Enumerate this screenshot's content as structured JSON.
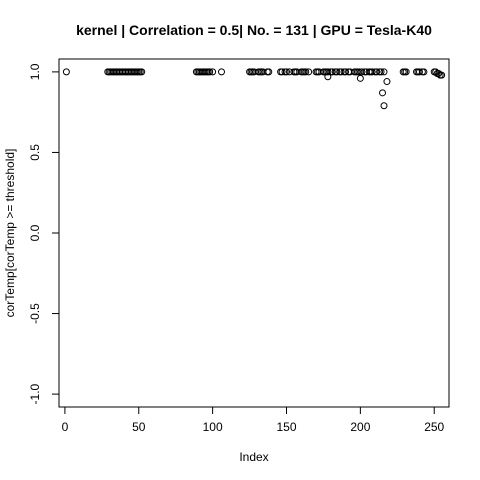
{
  "chart_data": {
    "type": "scatter",
    "title": "kernel | Correlation = 0.5| No. = 131 | GPU = Tesla-K40",
    "xlabel": "Index",
    "ylabel": "corTemp[corTemp >= threshold]",
    "xlim": [
      -4,
      260
    ],
    "ylim": [
      -1.08,
      1.08
    ],
    "xticks": [
      0,
      50,
      100,
      150,
      200,
      250
    ],
    "yticks": [
      -1.0,
      -0.5,
      0.0,
      0.5,
      1.0
    ],
    "xtick_labels": [
      "0",
      "50",
      "100",
      "150",
      "200",
      "250"
    ],
    "ytick_labels": [
      "-1.0",
      "-0.5",
      "0.0",
      "0.5",
      "1.0"
    ],
    "grid": false,
    "marker": "open-circle",
    "x": [
      1,
      29,
      30,
      31,
      32,
      33,
      34,
      35,
      36,
      37,
      38,
      39,
      40,
      41,
      42,
      43,
      44,
      45,
      46,
      47,
      48,
      49,
      50,
      51,
      52,
      89,
      90,
      91,
      92,
      93,
      94,
      95,
      96,
      97,
      98,
      100,
      106,
      125,
      126,
      127,
      128,
      131,
      132,
      133,
      134,
      137,
      138,
      146,
      147,
      149,
      150,
      152,
      155,
      156,
      157,
      160,
      161,
      162,
      163,
      165,
      170,
      171,
      172,
      175,
      176,
      177,
      178,
      180,
      181,
      183,
      184,
      186,
      187,
      189,
      190,
      192,
      193,
      196,
      197,
      198,
      199,
      201,
      203,
      204,
      206,
      207,
      208,
      210,
      211,
      213,
      214,
      216,
      229,
      230,
      231,
      238,
      239,
      240,
      242,
      243,
      250,
      251,
      252,
      253,
      254,
      255,
      200,
      178,
      215,
      216,
      218
    ],
    "y": [
      1,
      1,
      1,
      1,
      1,
      1,
      1,
      1,
      1,
      1,
      1,
      1,
      1,
      1,
      1,
      1,
      1,
      1,
      1,
      1,
      1,
      1,
      1,
      1,
      1,
      1,
      1,
      1,
      1,
      1,
      1,
      1,
      1,
      1,
      1,
      1,
      1,
      1,
      1,
      1,
      1,
      1,
      1,
      1,
      1,
      1,
      1,
      1,
      1,
      1,
      1,
      1,
      1,
      1,
      1,
      1,
      1,
      1,
      1,
      1,
      1,
      1,
      1,
      1,
      1,
      1,
      1,
      1,
      1,
      1,
      1,
      1,
      1,
      1,
      1,
      1,
      1,
      1,
      1,
      1,
      1,
      1,
      1,
      1,
      1,
      1,
      1,
      1,
      1,
      1,
      1,
      1,
      1,
      1,
      1,
      1,
      1,
      1,
      1,
      1,
      1,
      1,
      0.99,
      0.99,
      0.98,
      0.98,
      0.96,
      0.97,
      0.87,
      0.79,
      0.94
    ]
  }
}
